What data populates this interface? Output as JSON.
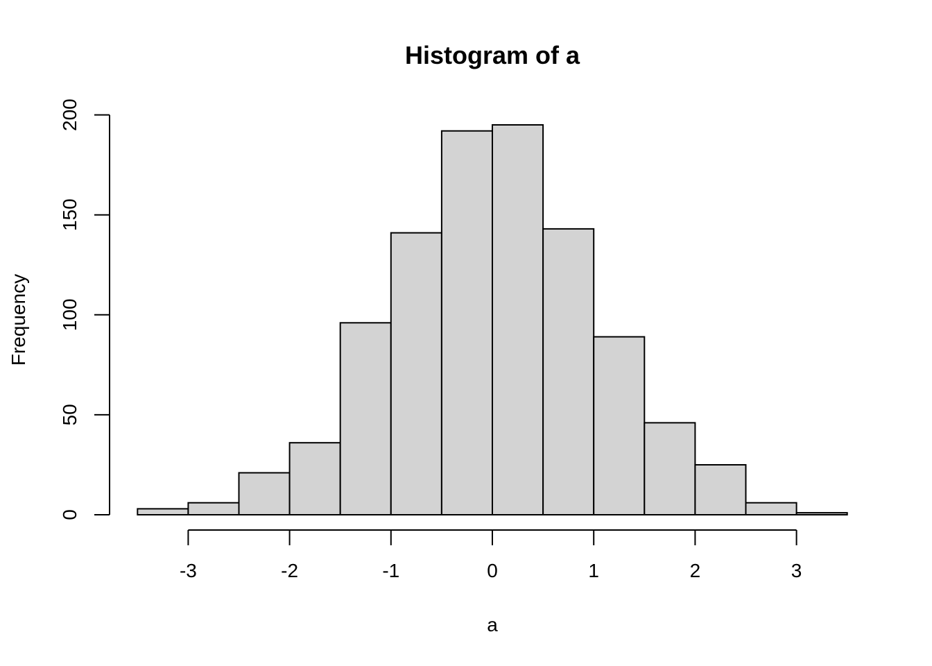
{
  "chart_data": {
    "type": "bar",
    "subtype": "histogram",
    "title": "Histogram of a",
    "xlabel": "a",
    "ylabel": "Frequency",
    "bin_edges": [
      -3.5,
      -3.0,
      -2.5,
      -2.0,
      -1.5,
      -1.0,
      -0.5,
      0.0,
      0.5,
      1.0,
      1.5,
      2.0,
      2.5,
      3.0,
      3.5
    ],
    "values": [
      3,
      6,
      21,
      36,
      96,
      141,
      192,
      195,
      143,
      89,
      46,
      25,
      6,
      1
    ],
    "xlim": [
      -3.5,
      3.5
    ],
    "ylim": [
      0,
      200
    ],
    "x_ticks": [
      -3,
      -2,
      -1,
      0,
      1,
      2,
      3
    ],
    "x_tick_labels": [
      "-3",
      "-2",
      "-1",
      "0",
      "1",
      "2",
      "3"
    ],
    "y_ticks": [
      0,
      50,
      100,
      150,
      200
    ],
    "y_tick_labels": [
      "0",
      "50",
      "100",
      "150",
      "200"
    ],
    "grid": false,
    "legend": "none",
    "colors": {
      "bar_fill": "#d3d3d3",
      "bar_stroke": "#000000",
      "axis": "#000000",
      "background": "#ffffff"
    }
  }
}
